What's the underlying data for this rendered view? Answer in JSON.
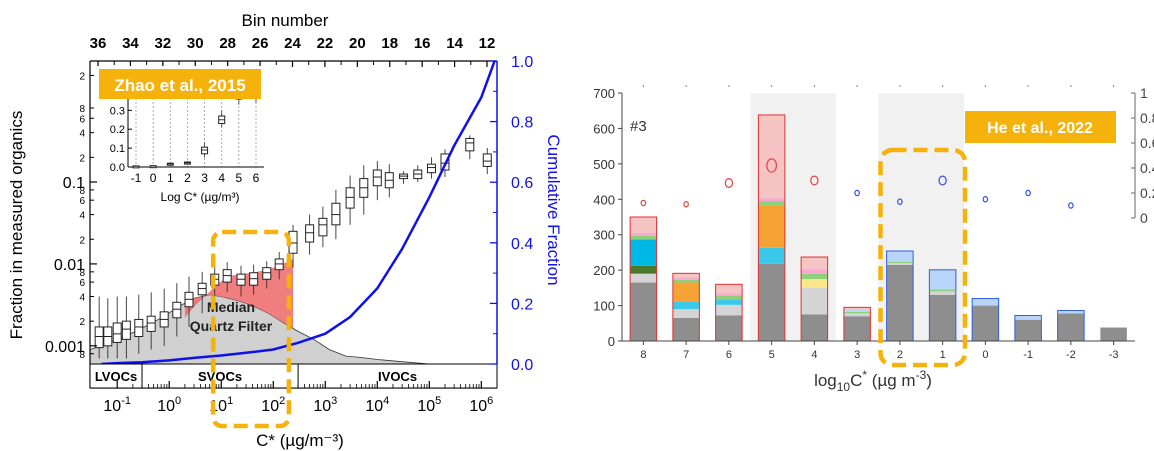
{
  "chart_data": [
    {
      "type": "box",
      "left_axis_label": "Fraction in measured organics",
      "right_axis_label": "Cumulative Fraction",
      "bottom_axis_label": "C* (µg/m⁻³)",
      "top_axis_label": "Bin number",
      "x_scale": "log",
      "y_scale": "log",
      "xlim": [
        0.03,
        2000000
      ],
      "ylim": [
        0.0006,
        3
      ],
      "right_ylim": [
        0,
        1
      ],
      "top_ticks": [
        "36",
        "34",
        "32",
        "30",
        "28",
        "26",
        "24",
        "22",
        "20",
        "18",
        "16",
        "14",
        "12"
      ],
      "right_ticks": [
        "0.0",
        "0.2",
        "0.4",
        "0.6",
        "0.8",
        "1.0"
      ],
      "bottom_ticks": [
        {
          "v": 0.1,
          "label": "10",
          "exp": "-1"
        },
        {
          "v": 1,
          "label": "10",
          "exp": "0"
        },
        {
          "v": 10,
          "label": "10",
          "exp": "1"
        },
        {
          "v": 100,
          "label": "10",
          "exp": "2"
        },
        {
          "v": 1000,
          "label": "10",
          "exp": "3"
        },
        {
          "v": 10000,
          "label": "10",
          "exp": "4"
        },
        {
          "v": 100000,
          "label": "10",
          "exp": "5"
        },
        {
          "v": 1000000,
          "label": "10",
          "exp": "6"
        }
      ],
      "left_ticks": [
        {
          "v": 0.1,
          "label": "0.1"
        },
        {
          "v": 0.01,
          "label": "0.01"
        },
        {
          "v": 0.001,
          "label": "0.001"
        }
      ],
      "left_minor_ticks": [
        {
          "v": 2,
          "label": "2"
        },
        {
          "v": 0.8,
          "label": "8"
        },
        {
          "v": 0.6,
          "label": "6"
        },
        {
          "v": 0.4,
          "label": "4"
        },
        {
          "v": 0.2,
          "label": "2"
        },
        {
          "v": 0.08,
          "label": "8"
        },
        {
          "v": 0.06,
          "label": "6"
        },
        {
          "v": 0.04,
          "label": "4"
        },
        {
          "v": 0.02,
          "label": "2"
        },
        {
          "v": 0.008,
          "label": "8"
        },
        {
          "v": 0.006,
          "label": "6"
        },
        {
          "v": 0.004,
          "label": "4"
        },
        {
          "v": 0.002,
          "label": "2"
        },
        {
          "v": 0.0008,
          "label": "8"
        }
      ],
      "boxes": [
        {
          "x": 0.045,
          "q1": 0.00095,
          "q3": 0.0017,
          "median": 0.0013,
          "low": 0.0007,
          "high": 0.004
        },
        {
          "x": 0.066,
          "q1": 0.001,
          "q3": 0.0017,
          "median": 0.0013,
          "low": 0.0007,
          "high": 0.0038
        },
        {
          "x": 0.1,
          "q1": 0.0011,
          "q3": 0.0019,
          "median": 0.0014,
          "low": 0.0007,
          "high": 0.004
        },
        {
          "x": 0.15,
          "q1": 0.0012,
          "q3": 0.002,
          "median": 0.0016,
          "low": 0.0007,
          "high": 0.004
        },
        {
          "x": 0.26,
          "q1": 0.0013,
          "q3": 0.0021,
          "median": 0.0017,
          "low": 0.0008,
          "high": 0.0042
        },
        {
          "x": 0.45,
          "q1": 0.0015,
          "q3": 0.0023,
          "median": 0.0019,
          "low": 0.0009,
          "high": 0.0045
        },
        {
          "x": 0.8,
          "q1": 0.0017,
          "q3": 0.0026,
          "median": 0.0021,
          "low": 0.001,
          "high": 0.005
        },
        {
          "x": 1.4,
          "q1": 0.0022,
          "q3": 0.0034,
          "median": 0.0028,
          "low": 0.0013,
          "high": 0.0058
        },
        {
          "x": 2.4,
          "q1": 0.003,
          "q3": 0.0045,
          "median": 0.0037,
          "low": 0.0017,
          "high": 0.007
        },
        {
          "x": 4.3,
          "q1": 0.0042,
          "q3": 0.0058,
          "median": 0.005,
          "low": 0.0025,
          "high": 0.008
        },
        {
          "x": 7.5,
          "q1": 0.0055,
          "q3": 0.0075,
          "median": 0.0065,
          "low": 0.0035,
          "high": 0.0095
        },
        {
          "x": 13,
          "q1": 0.006,
          "q3": 0.0085,
          "median": 0.0072,
          "low": 0.0045,
          "high": 0.0105
        },
        {
          "x": 24,
          "q1": 0.0055,
          "q3": 0.0075,
          "median": 0.0065,
          "low": 0.004,
          "high": 0.0095
        },
        {
          "x": 42,
          "q1": 0.0055,
          "q3": 0.0078,
          "median": 0.0066,
          "low": 0.0042,
          "high": 0.0098
        },
        {
          "x": 75,
          "q1": 0.0065,
          "q3": 0.009,
          "median": 0.0078,
          "low": 0.005,
          "high": 0.0108
        },
        {
          "x": 130,
          "q1": 0.0085,
          "q3": 0.0115,
          "median": 0.01,
          "low": 0.0065,
          "high": 0.014
        },
        {
          "x": 240,
          "q1": 0.0135,
          "q3": 0.025,
          "median": 0.018,
          "low": 0.009,
          "high": 0.03
        },
        {
          "x": 500,
          "q1": 0.0185,
          "q3": 0.03,
          "median": 0.024,
          "low": 0.013,
          "high": 0.04
        },
        {
          "x": 900,
          "q1": 0.022,
          "q3": 0.036,
          "median": 0.03,
          "low": 0.016,
          "high": 0.05
        },
        {
          "x": 1600,
          "q1": 0.03,
          "q3": 0.055,
          "median": 0.04,
          "low": 0.02,
          "high": 0.08
        },
        {
          "x": 3000,
          "q1": 0.048,
          "q3": 0.085,
          "median": 0.065,
          "low": 0.03,
          "high": 0.12
        },
        {
          "x": 5500,
          "q1": 0.065,
          "q3": 0.11,
          "median": 0.085,
          "low": 0.04,
          "high": 0.16
        },
        {
          "x": 10000,
          "q1": 0.09,
          "q3": 0.14,
          "median": 0.115,
          "low": 0.06,
          "high": 0.18
        },
        {
          "x": 17000,
          "q1": 0.085,
          "q3": 0.13,
          "median": 0.105,
          "low": 0.065,
          "high": 0.165
        },
        {
          "x": 32000,
          "q1": 0.11,
          "q3": 0.125,
          "median": 0.118,
          "low": 0.095,
          "high": 0.135
        },
        {
          "x": 60000,
          "q1": 0.11,
          "q3": 0.14,
          "median": 0.125,
          "low": 0.1,
          "high": 0.16
        },
        {
          "x": 110000,
          "q1": 0.13,
          "q3": 0.165,
          "median": 0.15,
          "low": 0.11,
          "high": 0.2
        },
        {
          "x": 200000,
          "q1": 0.14,
          "q3": 0.22,
          "median": 0.17,
          "low": 0.115,
          "high": 0.25
        },
        {
          "x": 600000,
          "q1": 0.24,
          "q3": 0.34,
          "median": 0.3,
          "low": 0.19,
          "high": 0.37
        },
        {
          "x": 1300000,
          "q1": 0.155,
          "q3": 0.22,
          "median": 0.18,
          "low": 0.125,
          "high": 0.26
        }
      ],
      "red_area": {
        "color": "#f07070",
        "x": [
          2,
          3,
          5,
          8,
          13,
          22,
          40,
          75,
          130,
          240,
          240
        ],
        "top": [
          0.0022,
          0.003,
          0.0041,
          0.0055,
          0.007,
          0.0075,
          0.0078,
          0.0085,
          0.0095,
          0.0115,
          0.0006
        ]
      },
      "gray_area": {
        "label": "Median Quartz Filter",
        "color": "#d0d0d0",
        "x": [
          0.03,
          0.06,
          0.1,
          0.2,
          0.4,
          0.8,
          1.5,
          3,
          6,
          10,
          20,
          40,
          80,
          160,
          300,
          600,
          1200,
          2500,
          5000,
          10000,
          30000,
          100000
        ],
        "y": [
          0.0009,
          0.00105,
          0.0012,
          0.00145,
          0.0018,
          0.0023,
          0.003,
          0.0038,
          0.0042,
          0.004,
          0.0036,
          0.0031,
          0.0025,
          0.0019,
          0.0015,
          0.0012,
          0.0009,
          0.00075,
          0.00072,
          0.00068,
          0.00064,
          0.0006
        ]
      },
      "cumulative": {
        "color": "#1010e8",
        "x": [
          0.05,
          0.1,
          0.3,
          1,
          3,
          10,
          30,
          100,
          300,
          1000,
          3000,
          10000,
          30000,
          100000,
          300000,
          1000000,
          1800000
        ],
        "y": [
          0,
          0.003,
          0.006,
          0.012,
          0.02,
          0.028,
          0.037,
          0.048,
          0.07,
          0.1,
          0.155,
          0.25,
          0.38,
          0.55,
          0.72,
          0.88,
          1.0
        ]
      },
      "volatility_classes": [
        {
          "label": "LVOCs",
          "from": 0.03,
          "to": 0.3
        },
        {
          "label": "SVOCs",
          "from": 0.3,
          "to": 300
        },
        {
          "label": "IVOCs",
          "from": 300,
          "to": 2000000
        }
      ],
      "citation": "Zhao et al., 2015",
      "highlight_xrange": [
        7,
        200
      ],
      "inset": {
        "type": "box",
        "xlabel": "Log C* (µg/m³)",
        "x_ticks": [
          "-1",
          "0",
          "1",
          "2",
          "3",
          "4",
          "5",
          "6"
        ],
        "y_ticks": [
          "0.0",
          "0.1",
          "0.2",
          "0.3",
          "0.4"
        ],
        "ylim": [
          0,
          0.45
        ],
        "boxes": [
          {
            "x": -1,
            "q1": 0.003,
            "q3": 0.006,
            "median": 0.004,
            "low": 0.002,
            "high": 0.008
          },
          {
            "x": 0,
            "q1": 0.004,
            "q3": 0.007,
            "median": 0.005,
            "low": 0.003,
            "high": 0.01
          },
          {
            "x": 1,
            "q1": 0.012,
            "q3": 0.02,
            "median": 0.016,
            "low": 0.008,
            "high": 0.025
          },
          {
            "x": 2,
            "q1": 0.018,
            "q3": 0.026,
            "median": 0.022,
            "low": 0.012,
            "high": 0.032
          },
          {
            "x": 3,
            "q1": 0.07,
            "q3": 0.105,
            "median": 0.09,
            "low": 0.05,
            "high": 0.13
          },
          {
            "x": 4,
            "q1": 0.23,
            "q3": 0.27,
            "median": 0.25,
            "low": 0.21,
            "high": 0.3
          },
          {
            "x": 5,
            "q1": 0.36,
            "q3": 0.42,
            "median": 0.39,
            "low": 0.33,
            "high": 0.45
          },
          {
            "x": 6,
            "q1": 0.38,
            "q3": 0.44,
            "median": 0.42,
            "low": 0.34,
            "high": 0.45
          }
        ]
      }
    },
    {
      "type": "bar",
      "subtype": "stacked",
      "panel_label": "#3",
      "xlabel_parts": {
        "base": "log",
        "sub": "10",
        "var": "C",
        "sup": "*",
        "rest": " (µg m",
        "sup2": "-3",
        "close": ")"
      },
      "categories": [
        "8",
        "7",
        "6",
        "5",
        "4",
        "3",
        "2",
        "1",
        "0",
        "-1",
        "-2",
        "-3"
      ],
      "ylim": [
        0,
        700
      ],
      "y_ticks": [
        "0",
        "100",
        "200",
        "300",
        "400",
        "500",
        "600",
        "700"
      ],
      "right_ylim": [
        0,
        1
      ],
      "right_ticks": [
        "0",
        "0.2",
        "0.4",
        "0.6",
        "0.8",
        "1"
      ],
      "shaded_categories": [
        "5",
        "4",
        "2",
        "1"
      ],
      "series": [
        {
          "name": "",
          "color": "#8e8e8e",
          "values": [
            165,
            65,
            72,
            218,
            75,
            70,
            215,
            130,
            100,
            60,
            78,
            38
          ]
        },
        {
          "name": "",
          "color": "#d4d4d4",
          "values": [
            25,
            25,
            30,
            0,
            75,
            8,
            5,
            10,
            0,
            0,
            0,
            0
          ]
        },
        {
          "name": "",
          "color": "#fde68a",
          "values": [
            0,
            0,
            0,
            0,
            25,
            0,
            0,
            0,
            0,
            0,
            0,
            0
          ]
        },
        {
          "name": "",
          "color": "#3ac9ea",
          "values": [
            0,
            20,
            15,
            45,
            0,
            0,
            0,
            0,
            0,
            0,
            0,
            0
          ]
        },
        {
          "name": "",
          "color": "#4a7a2a",
          "values": [
            22,
            0,
            0,
            0,
            0,
            0,
            0,
            0,
            0,
            0,
            0,
            0
          ]
        },
        {
          "name": "",
          "color": "#00b8e6",
          "values": [
            75,
            0,
            0,
            0,
            0,
            0,
            0,
            0,
            0,
            0,
            0,
            0
          ]
        },
        {
          "name": "",
          "color": "#f7a234",
          "values": [
            0,
            55,
            0,
            120,
            0,
            0,
            0,
            0,
            0,
            0,
            0,
            0
          ]
        },
        {
          "name": "",
          "color": "#8fd17a",
          "values": [
            10,
            8,
            10,
            12,
            15,
            4,
            4,
            6,
            0,
            0,
            0,
            0
          ]
        },
        {
          "name": "",
          "color": "#f6a8d2",
          "values": [
            8,
            6,
            8,
            8,
            12,
            0,
            0,
            0,
            0,
            0,
            0,
            0
          ]
        },
        {
          "name": "",
          "color": "#b8d4f8",
          "values": [
            0,
            0,
            0,
            0,
            0,
            8,
            30,
            55,
            20,
            12,
            8,
            0
          ]
        },
        {
          "name": "",
          "color": "#f7c4c4",
          "values": [
            45,
            12,
            25,
            235,
            35,
            5,
            0,
            0,
            0,
            0,
            0,
            0
          ]
        }
      ],
      "outline_colors": {
        "red": "#e03030",
        "blue": "#3060e0"
      },
      "outline_red_categories": [
        "8",
        "7",
        "6",
        "5",
        "4",
        "3"
      ],
      "markers": [
        {
          "category": "8",
          "value": 0.12,
          "color": "#e04040",
          "size": "small"
        },
        {
          "category": "7",
          "value": 0.11,
          "color": "#e04040",
          "size": "small"
        },
        {
          "category": "6",
          "value": 0.28,
          "color": "#e04040",
          "size": "medium"
        },
        {
          "category": "5",
          "value": 0.42,
          "color": "#e04040",
          "size": "large"
        },
        {
          "category": "4",
          "value": 0.3,
          "color": "#e04040",
          "size": "medium"
        },
        {
          "category": "3",
          "value": 0.2,
          "color": "#3050e0",
          "size": "small"
        },
        {
          "category": "2",
          "value": 0.13,
          "color": "#3050e0",
          "size": "small"
        },
        {
          "category": "1",
          "value": 0.3,
          "color": "#3050e0",
          "size": "medium"
        },
        {
          "category": "0",
          "value": 0.15,
          "color": "#3050e0",
          "size": "small"
        },
        {
          "category": "-1",
          "value": 0.2,
          "color": "#3050e0",
          "size": "small"
        },
        {
          "category": "-2",
          "value": 0.1,
          "color": "#3050e0",
          "size": "small"
        }
      ],
      "citation": "He et al., 2022",
      "highlight_categories": [
        "2",
        "1"
      ]
    }
  ]
}
